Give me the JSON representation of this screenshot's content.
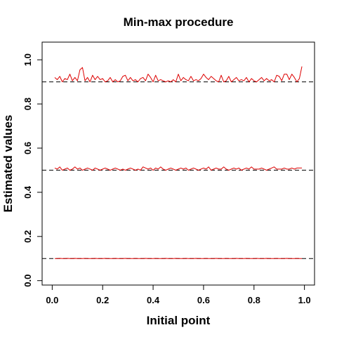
{
  "chart_data": {
    "type": "line",
    "title": "Min-max procedure",
    "xlabel": "Initial point",
    "ylabel": "Estimated values",
    "xlim": [
      -0.04,
      1.04
    ],
    "ylim": [
      -0.02,
      1.08
    ],
    "xticks": [
      0.0,
      0.2,
      0.4,
      0.6,
      0.8,
      1.0
    ],
    "xtick_labels": [
      "0.0",
      "0.2",
      "0.4",
      "0.6",
      "0.8",
      "1.0"
    ],
    "yticks": [
      0.0,
      0.2,
      0.4,
      0.6,
      0.8,
      1.0
    ],
    "ytick_labels": [
      "0.0",
      "0.2",
      "0.4",
      "0.6",
      "0.8",
      "1.0"
    ],
    "grid": false,
    "legend": "none",
    "reference_lines": [
      0.1,
      0.5,
      0.9
    ],
    "x": [
      0.01,
      0.02,
      0.03,
      0.04,
      0.05,
      0.06,
      0.07,
      0.08,
      0.09,
      0.1,
      0.11,
      0.12,
      0.13,
      0.14,
      0.15,
      0.16,
      0.17,
      0.18,
      0.19,
      0.2,
      0.21,
      0.22,
      0.23,
      0.24,
      0.25,
      0.26,
      0.27,
      0.28,
      0.29,
      0.3,
      0.31,
      0.32,
      0.33,
      0.34,
      0.35,
      0.36,
      0.37,
      0.38,
      0.39,
      0.4,
      0.41,
      0.42,
      0.43,
      0.44,
      0.45,
      0.46,
      0.47,
      0.48,
      0.49,
      0.5,
      0.51,
      0.52,
      0.53,
      0.54,
      0.55,
      0.56,
      0.57,
      0.58,
      0.59,
      0.6,
      0.61,
      0.62,
      0.63,
      0.64,
      0.65,
      0.66,
      0.67,
      0.68,
      0.69,
      0.7,
      0.71,
      0.72,
      0.73,
      0.74,
      0.75,
      0.76,
      0.77,
      0.78,
      0.79,
      0.8,
      0.81,
      0.82,
      0.83,
      0.84,
      0.85,
      0.86,
      0.87,
      0.88,
      0.89,
      0.9,
      0.91,
      0.92,
      0.93,
      0.94,
      0.95,
      0.96,
      0.97,
      0.98,
      0.99
    ],
    "series": [
      {
        "color": "#dd0000",
        "values": [
          0.92,
          0.91,
          0.925,
          0.9,
          0.915,
          0.91,
          0.935,
          0.905,
          0.92,
          0.905,
          0.955,
          0.965,
          0.905,
          0.92,
          0.9,
          0.93,
          0.91,
          0.925,
          0.91,
          0.915,
          0.9,
          0.905,
          0.92,
          0.9,
          0.91,
          0.9,
          0.905,
          0.925,
          0.93,
          0.905,
          0.92,
          0.905,
          0.91,
          0.9,
          0.915,
          0.92,
          0.905,
          0.935,
          0.92,
          0.9,
          0.93,
          0.905,
          0.91,
          0.905,
          0.9,
          0.905,
          0.9,
          0.91,
          0.9,
          0.935,
          0.905,
          0.92,
          0.91,
          0.905,
          0.925,
          0.905,
          0.91,
          0.905,
          0.915,
          0.935,
          0.92,
          0.91,
          0.925,
          0.915,
          0.905,
          0.9,
          0.93,
          0.9,
          0.905,
          0.925,
          0.9,
          0.91,
          0.92,
          0.905,
          0.91,
          0.905,
          0.92,
          0.9,
          0.915,
          0.905,
          0.9,
          0.91,
          0.92,
          0.905,
          0.915,
          0.905,
          0.91,
          0.9,
          0.93,
          0.925,
          0.905,
          0.935,
          0.935,
          0.91,
          0.935,
          0.92,
          0.9,
          0.915,
          0.97
        ]
      },
      {
        "color": "#dd0000",
        "values": [
          0.51,
          0.505,
          0.515,
          0.5,
          0.505,
          0.51,
          0.5,
          0.505,
          0.515,
          0.505,
          0.51,
          0.5,
          0.505,
          0.51,
          0.505,
          0.5,
          0.51,
          0.505,
          0.5,
          0.505,
          0.51,
          0.505,
          0.5,
          0.505,
          0.51,
          0.505,
          0.5,
          0.505,
          0.5,
          0.505,
          0.51,
          0.505,
          0.5,
          0.505,
          0.5,
          0.515,
          0.51,
          0.505,
          0.51,
          0.5,
          0.51,
          0.505,
          0.515,
          0.505,
          0.5,
          0.505,
          0.51,
          0.505,
          0.5,
          0.505,
          0.51,
          0.505,
          0.51,
          0.5,
          0.505,
          0.51,
          0.505,
          0.5,
          0.505,
          0.51,
          0.505,
          0.515,
          0.5,
          0.505,
          0.51,
          0.505,
          0.505,
          0.515,
          0.505,
          0.5,
          0.505,
          0.51,
          0.505,
          0.51,
          0.5,
          0.505,
          0.51,
          0.505,
          0.515,
          0.505,
          0.505,
          0.505,
          0.51,
          0.505,
          0.5,
          0.505,
          0.51,
          0.515,
          0.505,
          0.505,
          0.505,
          0.51,
          0.505,
          0.505,
          0.51,
          0.505,
          0.51,
          0.51,
          0.51
        ]
      },
      {
        "color": "#dd0000",
        "values": [
          0.1,
          0.1,
          0.101,
          0.1,
          0.1,
          0.101,
          0.1,
          0.1,
          0.101,
          0.1,
          0.1,
          0.1,
          0.101,
          0.1,
          0.1,
          0.1,
          0.101,
          0.1,
          0.1,
          0.1,
          0.101,
          0.1,
          0.1,
          0.1,
          0.101,
          0.1,
          0.1,
          0.1,
          0.101,
          0.1,
          0.1,
          0.1,
          0.101,
          0.1,
          0.1,
          0.1,
          0.101,
          0.1,
          0.1,
          0.1,
          0.101,
          0.1,
          0.1,
          0.1,
          0.101,
          0.1,
          0.1,
          0.1,
          0.101,
          0.1,
          0.1,
          0.1,
          0.101,
          0.1,
          0.1,
          0.1,
          0.101,
          0.1,
          0.1,
          0.1,
          0.101,
          0.1,
          0.1,
          0.1,
          0.101,
          0.1,
          0.1,
          0.1,
          0.101,
          0.1,
          0.1,
          0.1,
          0.101,
          0.1,
          0.1,
          0.1,
          0.101,
          0.1,
          0.1,
          0.1,
          0.101,
          0.1,
          0.1,
          0.1,
          0.101,
          0.1,
          0.1,
          0.1,
          0.101,
          0.1,
          0.1,
          0.1,
          0.101,
          0.1,
          0.1,
          0.1,
          0.101,
          0.1,
          0.1
        ]
      }
    ],
    "reference_line_color": "#000000",
    "reference_line_style": "dashed"
  }
}
